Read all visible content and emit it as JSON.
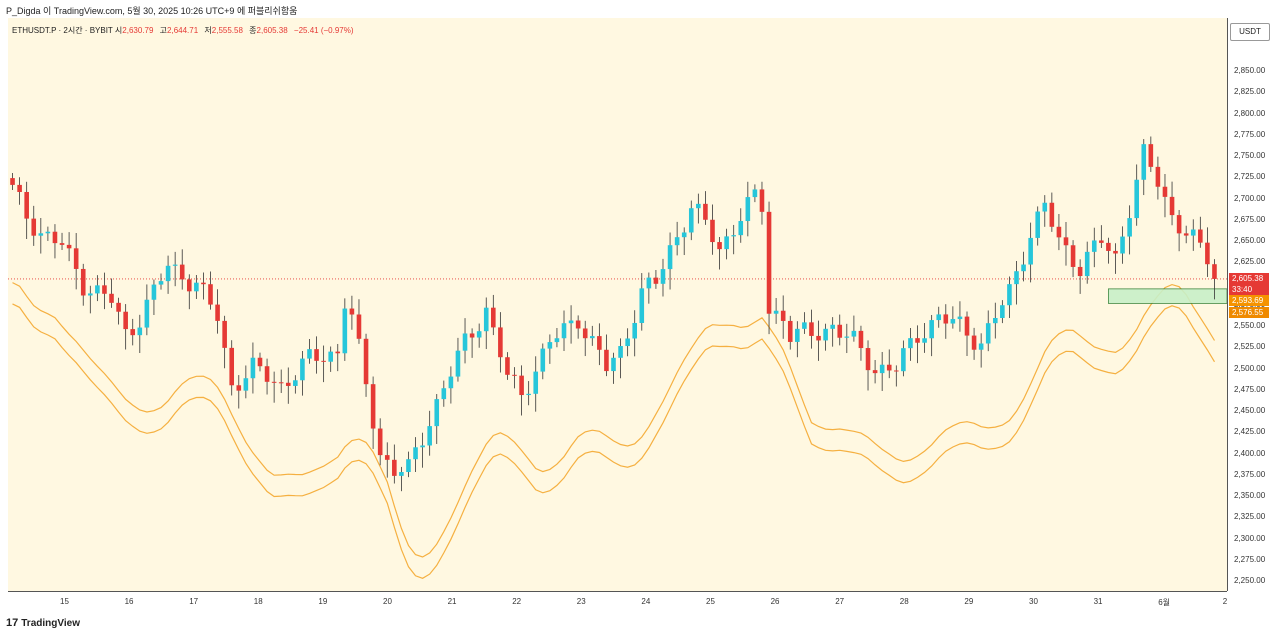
{
  "header": {
    "publish_line": "P_Digda 이 TradingView.com, 5월 30, 2025 10:26 UTC+9 에 퍼블리쉬함움"
  },
  "legend": {
    "symbol": "ETHUSDT.P · 2시간 · BYBIT",
    "open_label": "시",
    "open": "2,630.79",
    "high_label": "고",
    "high": "2,644.71",
    "low_label": "저",
    "low": "2,555.58",
    "close_label": "종",
    "close": "2,605.38",
    "change": "−25.41 (−0.97%)"
  },
  "currency": "USDT",
  "badges": {
    "last_price": "2,605.38",
    "countdown": "33:40",
    "upper": "2,593.69",
    "lower": "2,576.55"
  },
  "footer": {
    "logo_glyph": "17",
    "brand": "TradingView"
  },
  "colors": {
    "up": "#26c6da",
    "down": "#e53935",
    "band": "#f5b041",
    "zone_fill": "#c8f0c8",
    "zone_stroke": "#2e7d32"
  },
  "chart_data": {
    "type": "candlestick",
    "symbol": "ETHUSDT.P",
    "interval": "2h",
    "ylim": [
      2235,
      2910
    ],
    "y_ticks": [
      "2,850.00",
      "2,825.00",
      "2,800.00",
      "2,775.00",
      "2,750.00",
      "2,725.00",
      "2,700.00",
      "2,675.00",
      "2,650.00",
      "2,625.00",
      "2,600.00",
      "2,575.00",
      "2,550.00",
      "2,525.00",
      "2,500.00",
      "2,475.00",
      "2,450.00",
      "2,425.00",
      "2,400.00",
      "2,375.00",
      "2,350.00",
      "2,325.00",
      "2,300.00",
      "2,275.00",
      "2,250.00"
    ],
    "x_labels": [
      "15",
      "16",
      "17",
      "18",
      "19",
      "20",
      "21",
      "22",
      "23",
      "24",
      "25",
      "26",
      "27",
      "28",
      "29",
      "30",
      "31",
      "6월",
      "2"
    ],
    "waypoints": [
      [
        0,
        2710
      ],
      [
        2,
        2680
      ],
      [
        4,
        2660
      ],
      [
        7,
        2645
      ],
      [
        10,
        2600
      ],
      [
        14,
        2580
      ],
      [
        16,
        2540
      ],
      [
        18,
        2560
      ],
      [
        22,
        2620
      ],
      [
        26,
        2600
      ],
      [
        29,
        2560
      ],
      [
        31,
        2480
      ],
      [
        34,
        2500
      ],
      [
        38,
        2480
      ],
      [
        42,
        2510
      ],
      [
        46,
        2520
      ],
      [
        47,
        2580
      ],
      [
        48,
        2560
      ],
      [
        52,
        2400
      ],
      [
        54,
        2380
      ],
      [
        56,
        2380
      ],
      [
        60,
        2460
      ],
      [
        64,
        2530
      ],
      [
        67,
        2570
      ],
      [
        70,
        2490
      ],
      [
        72,
        2470
      ],
      [
        76,
        2530
      ],
      [
        80,
        2560
      ],
      [
        82,
        2530
      ],
      [
        84,
        2500
      ],
      [
        86,
        2520
      ],
      [
        89,
        2590
      ],
      [
        91,
        2600
      ],
      [
        93,
        2640
      ],
      [
        96,
        2690
      ],
      [
        98,
        2670
      ],
      [
        100,
        2640
      ],
      [
        103,
        2680
      ],
      [
        105,
        2700
      ],
      [
        106,
        2690
      ],
      [
        107,
        2570
      ],
      [
        109,
        2560
      ],
      [
        110,
        2540
      ],
      [
        113,
        2540
      ],
      [
        116,
        2550
      ],
      [
        119,
        2530
      ],
      [
        122,
        2500
      ],
      [
        125,
        2500
      ],
      [
        128,
        2540
      ],
      [
        131,
        2560
      ],
      [
        134,
        2550
      ],
      [
        137,
        2530
      ],
      [
        139,
        2560
      ],
      [
        141,
        2590
      ],
      [
        144,
        2660
      ],
      [
        146,
        2690
      ],
      [
        148,
        2650
      ],
      [
        151,
        2620
      ],
      [
        154,
        2650
      ],
      [
        156,
        2630
      ],
      [
        158,
        2690
      ],
      [
        160,
        2750
      ],
      [
        162,
        2720
      ],
      [
        164,
        2680
      ],
      [
        167,
        2650
      ],
      [
        169,
        2630
      ],
      [
        170,
        2605.38
      ]
    ],
    "upper_band_offset": -115,
    "lower_band_offset": -140,
    "last_price": 2605.38,
    "zone": {
      "top": 2593.69,
      "bottom": 2576.55
    }
  }
}
